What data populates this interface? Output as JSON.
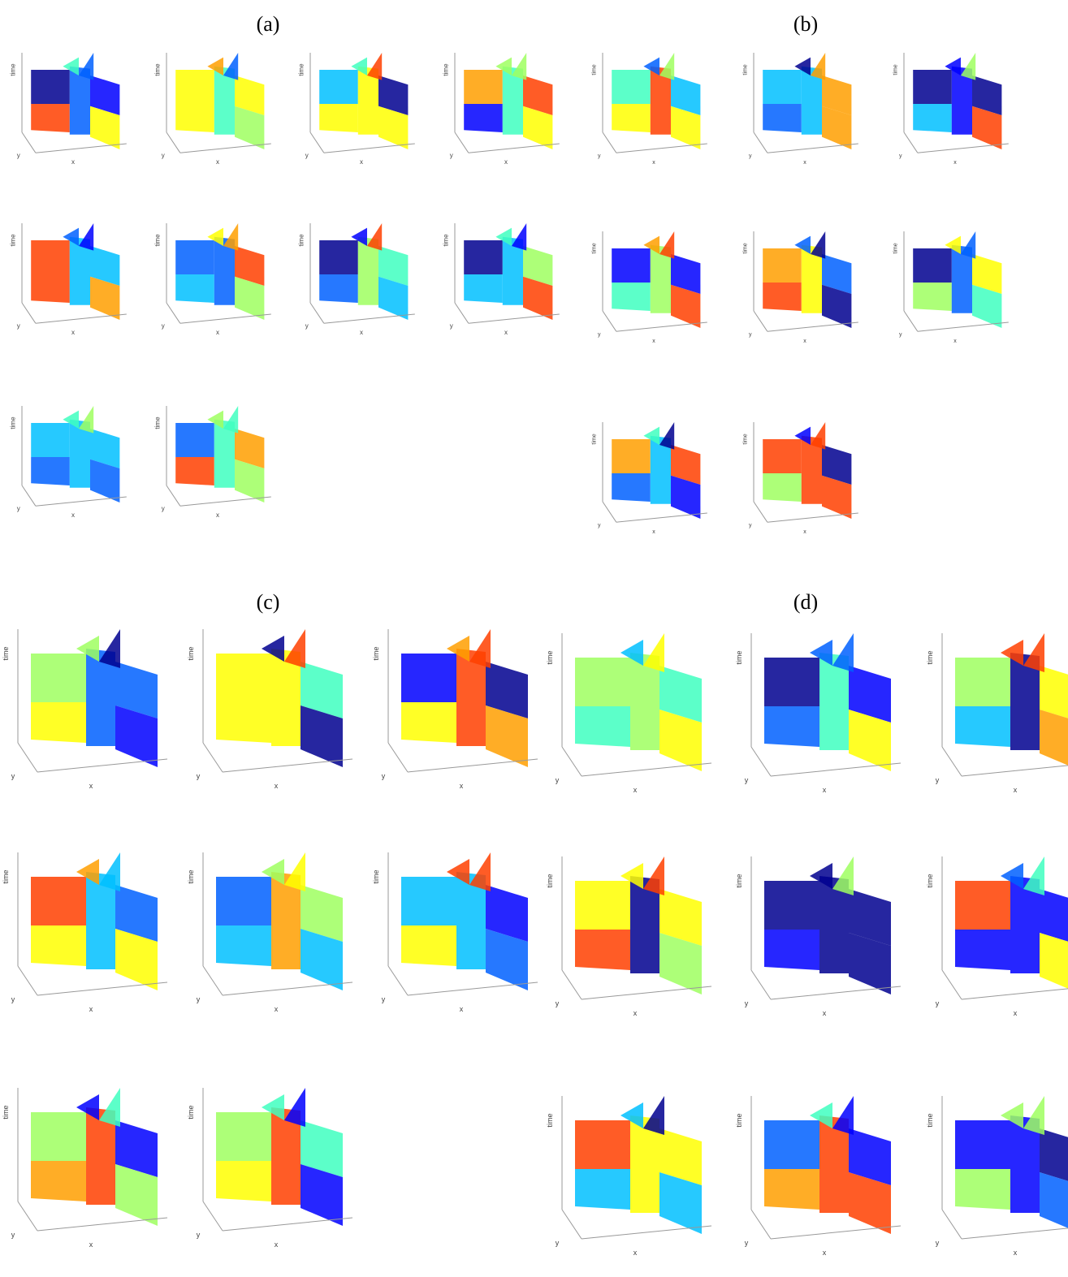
{
  "panels": [
    {
      "label": "(a)",
      "plots": [
        {
          "z": "time",
          "y": "y",
          "x": "x"
        },
        {
          "z": "time",
          "y": "y",
          "x": "x"
        },
        {
          "z": "time",
          "y": "y",
          "x": "x"
        },
        {
          "z": "time",
          "y": "y",
          "x": "x"
        },
        {
          "z": "time",
          "y": "y",
          "x": "x"
        },
        {
          "z": "time",
          "y": "y",
          "x": "x"
        },
        {
          "z": "time",
          "y": "y",
          "x": "x"
        },
        {
          "z": "time",
          "y": "y",
          "x": "x"
        },
        {
          "z": "time",
          "y": "y",
          "x": "x"
        },
        {
          "z": "time",
          "y": "y",
          "x": "x"
        }
      ]
    },
    {
      "label": "(b)",
      "plots": [
        {
          "z": "time",
          "y": "y",
          "x": "x"
        },
        {
          "z": "time",
          "y": "y",
          "x": "x"
        },
        {
          "z": "time",
          "y": "y",
          "x": "x"
        },
        {
          "z": "time",
          "y": "y",
          "x": "x"
        },
        {
          "z": "time",
          "y": "y",
          "x": "x"
        },
        {
          "z": "time",
          "y": "y",
          "x": "x"
        },
        {
          "z": "time",
          "y": "y",
          "x": "x"
        },
        {
          "z": "time",
          "y": "y",
          "x": "x"
        }
      ]
    },
    {
      "label": "(c)",
      "plots": [
        {
          "z": "time",
          "y": "y",
          "x": "x"
        },
        {
          "z": "time",
          "y": "y",
          "x": "x"
        },
        {
          "z": "time",
          "y": "y",
          "x": "x"
        },
        {
          "z": "time",
          "y": "y",
          "x": "x"
        },
        {
          "z": "time",
          "y": "y",
          "x": "x"
        },
        {
          "z": "time",
          "y": "y",
          "x": "x"
        },
        {
          "z": "time",
          "y": "y",
          "x": "x"
        },
        {
          "z": "time",
          "y": "y",
          "x": "x"
        }
      ]
    },
    {
      "label": "(d)",
      "plots": [
        {
          "z": "time",
          "y": "y",
          "x": "x"
        },
        {
          "z": "time",
          "y": "y",
          "x": "x"
        },
        {
          "z": "time",
          "y": "y",
          "x": "x"
        },
        {
          "z": "time",
          "y": "y",
          "x": "x"
        },
        {
          "z": "time",
          "y": "y",
          "x": "x"
        },
        {
          "z": "time",
          "y": "y",
          "x": "x"
        },
        {
          "z": "time",
          "y": "y",
          "x": "x"
        },
        {
          "z": "time",
          "y": "y",
          "x": "x"
        },
        {
          "z": "time",
          "y": "y",
          "x": "x"
        }
      ]
    }
  ]
}
